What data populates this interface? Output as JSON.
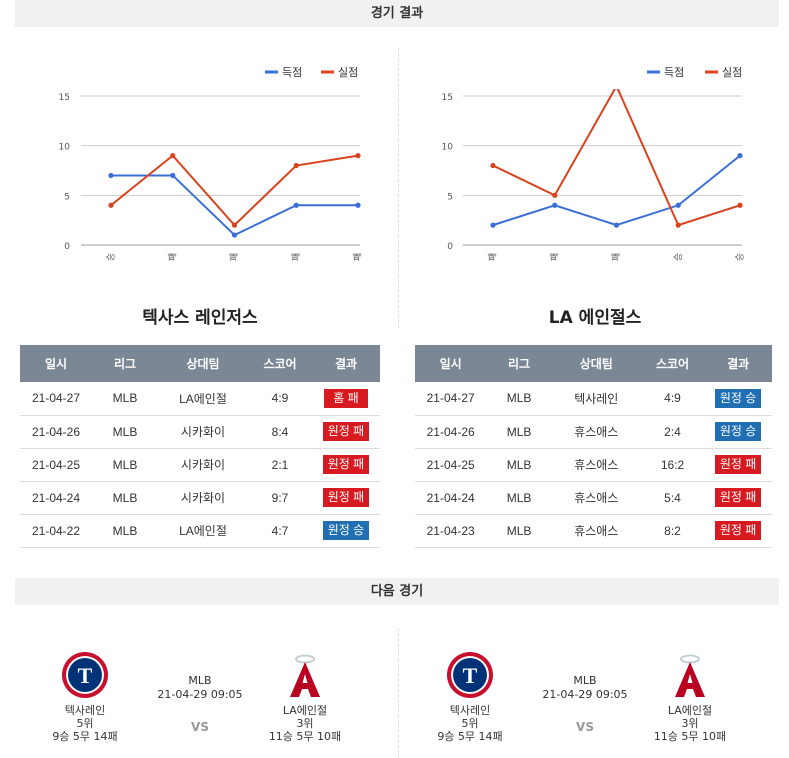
{
  "sections": {
    "result_title": "경기 결과",
    "next_title": "다음 경기"
  },
  "legend": {
    "scored": "득점",
    "allowed": "실점"
  },
  "colors": {
    "scored": "#3a6fd8",
    "allowed": "#d9431e",
    "header_bg": "#7b8794",
    "loss": "#d71920",
    "win": "#1f6fb2"
  },
  "chart_data": [
    {
      "type": "line",
      "categories": [
        "승",
        "패",
        "패",
        "패",
        "패"
      ],
      "ylim": [
        0,
        15
      ],
      "yticks": [
        0,
        5,
        10,
        15
      ],
      "grid": true,
      "legend_position": "top-right",
      "series": [
        {
          "name": "득점",
          "values": [
            7,
            7,
            1,
            4,
            4
          ]
        },
        {
          "name": "실점",
          "values": [
            4,
            9,
            2,
            8,
            9
          ]
        }
      ]
    },
    {
      "type": "line",
      "categories": [
        "패",
        "패",
        "패",
        "승",
        "승"
      ],
      "ylim": [
        0,
        15
      ],
      "yticks": [
        0,
        5,
        10,
        15
      ],
      "grid": true,
      "legend_position": "top-right",
      "series": [
        {
          "name": "득점",
          "values": [
            2,
            4,
            2,
            4,
            9
          ]
        },
        {
          "name": "실점",
          "values": [
            8,
            5,
            16,
            2,
            4
          ]
        }
      ]
    }
  ],
  "left_team": {
    "title": "텍사스 레인저스",
    "headers": [
      "일시",
      "리그",
      "상대팀",
      "스코어",
      "결과"
    ],
    "rows": [
      {
        "date": "21-04-27",
        "league": "MLB",
        "opponent": "LA에인절",
        "score": "4:9",
        "result": "홈 패",
        "type": "loss"
      },
      {
        "date": "21-04-26",
        "league": "MLB",
        "opponent": "시카화이",
        "score": "8:4",
        "result": "원정 패",
        "type": "loss"
      },
      {
        "date": "21-04-25",
        "league": "MLB",
        "opponent": "시카화이",
        "score": "2:1",
        "result": "원정 패",
        "type": "loss"
      },
      {
        "date": "21-04-24",
        "league": "MLB",
        "opponent": "시카화이",
        "score": "9:7",
        "result": "원정 패",
        "type": "loss"
      },
      {
        "date": "21-04-22",
        "league": "MLB",
        "opponent": "LA에인절",
        "score": "4:7",
        "result": "원정 승",
        "type": "win"
      }
    ]
  },
  "right_team": {
    "title": "LA 에인절스",
    "headers": [
      "일시",
      "리그",
      "상대팀",
      "스코어",
      "결과"
    ],
    "rows": [
      {
        "date": "21-04-27",
        "league": "MLB",
        "opponent": "텍사레인",
        "score": "4:9",
        "result": "원정 승",
        "type": "win"
      },
      {
        "date": "21-04-26",
        "league": "MLB",
        "opponent": "휴스애스",
        "score": "2:4",
        "result": "원정 승",
        "type": "win"
      },
      {
        "date": "21-04-25",
        "league": "MLB",
        "opponent": "휴스애스",
        "score": "16:2",
        "result": "원정 패",
        "type": "loss"
      },
      {
        "date": "21-04-24",
        "league": "MLB",
        "opponent": "휴스애스",
        "score": "5:4",
        "result": "원정 패",
        "type": "loss"
      },
      {
        "date": "21-04-23",
        "league": "MLB",
        "opponent": "휴스애스",
        "score": "8:2",
        "result": "원정 패",
        "type": "loss"
      }
    ]
  },
  "next_matches": [
    {
      "league": "MLB",
      "datetime": "21-04-29 09:05",
      "vs": "VS",
      "home": {
        "name": "텍사레인",
        "rank": "5위",
        "record": "9승 5무 14패",
        "logo": "rangers-logo"
      },
      "away": {
        "name": "LA에인절",
        "rank": "3위",
        "record": "11승 5무 10패",
        "logo": "angels-logo"
      }
    },
    {
      "league": "MLB",
      "datetime": "21-04-29 09:05",
      "vs": "VS",
      "home": {
        "name": "텍사레인",
        "rank": "5위",
        "record": "9승 5무 14패",
        "logo": "rangers-logo"
      },
      "away": {
        "name": "LA에인절",
        "rank": "3위",
        "record": "11승 5무 10패",
        "logo": "angels-logo"
      }
    }
  ]
}
